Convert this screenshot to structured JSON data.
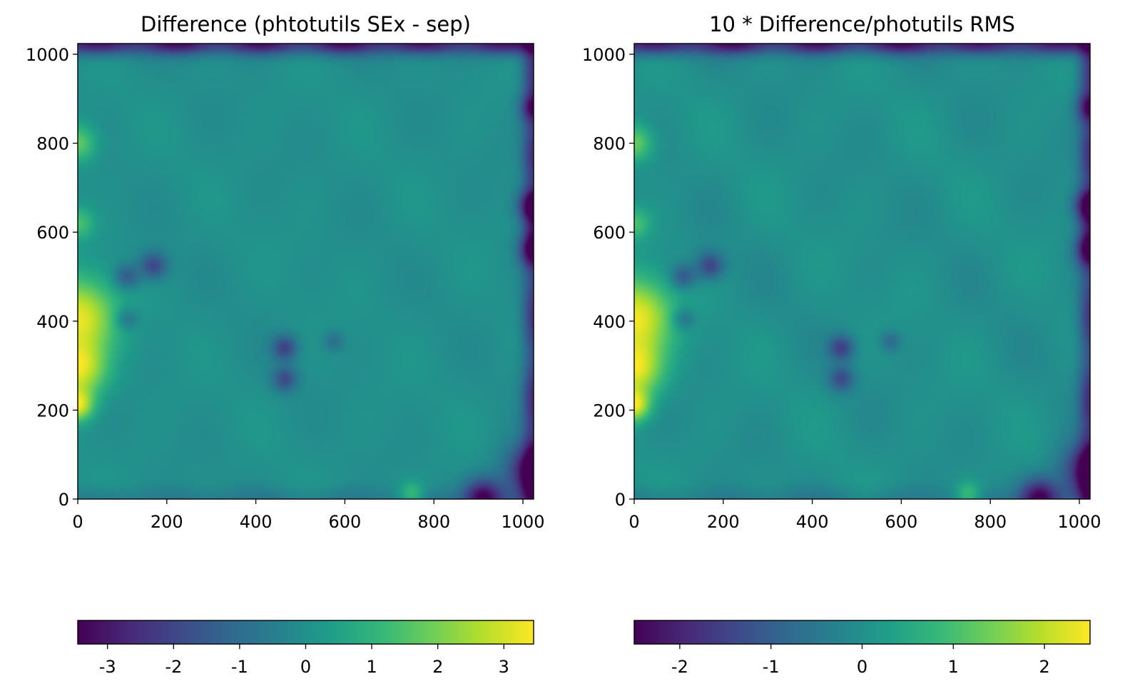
{
  "chart_data": [
    {
      "type": "heatmap",
      "title": "Difference (phtotutils SEx - sep)",
      "xlabel": "",
      "ylabel": "",
      "xlim": [
        0,
        1024
      ],
      "ylim": [
        0,
        1024
      ],
      "xticks": [
        0,
        200,
        400,
        600,
        800,
        1000
      ],
      "yticks": [
        0,
        200,
        400,
        600,
        800,
        1000
      ],
      "grid": false,
      "colormap": "viridis",
      "colorbar": {
        "orientation": "horizontal",
        "placement": "bottom",
        "range": [
          -3.45,
          3.45
        ],
        "ticks": [
          -3,
          -2,
          -1,
          0,
          1,
          2,
          3
        ],
        "ticklabels": [
          "-3",
          "-2",
          "-1",
          "0",
          "1",
          "2",
          "3"
        ]
      },
      "background_value": 0,
      "features": [
        {
          "kind": "edge",
          "side": "top",
          "value": -3.2
        },
        {
          "kind": "edge",
          "side": "right",
          "value": -2.5
        },
        {
          "kind": "edge",
          "side": "bottom",
          "value": -0.6
        },
        {
          "kind": "blob",
          "x": 0,
          "y": 410,
          "value": 3.2,
          "radius": 60
        },
        {
          "kind": "blob",
          "x": 0,
          "y": 290,
          "value": 3.0,
          "radius": 45
        },
        {
          "kind": "blob",
          "x": 0,
          "y": 210,
          "value": 2.8,
          "radius": 25
        },
        {
          "kind": "blob",
          "x": 0,
          "y": 800,
          "value": 1.8,
          "radius": 30
        },
        {
          "kind": "blob",
          "x": 0,
          "y": 620,
          "value": 1.4,
          "radius": 25
        },
        {
          "kind": "blob",
          "x": 170,
          "y": 525,
          "value": -2.0,
          "radius": 22
        },
        {
          "kind": "blob",
          "x": 110,
          "y": 500,
          "value": -1.6,
          "radius": 20
        },
        {
          "kind": "blob",
          "x": 110,
          "y": 405,
          "value": -1.2,
          "radius": 18
        },
        {
          "kind": "blob",
          "x": 465,
          "y": 340,
          "value": -2.0,
          "radius": 20
        },
        {
          "kind": "blob",
          "x": 465,
          "y": 270,
          "value": -1.8,
          "radius": 20
        },
        {
          "kind": "blob",
          "x": 575,
          "y": 355,
          "value": -1.0,
          "radius": 16
        },
        {
          "kind": "blob",
          "x": 1024,
          "y": 660,
          "value": -3.0,
          "radius": 25
        },
        {
          "kind": "blob",
          "x": 1024,
          "y": 560,
          "value": -2.2,
          "radius": 25
        },
        {
          "kind": "blob",
          "x": 1024,
          "y": 880,
          "value": -2.0,
          "radius": 22
        },
        {
          "kind": "blob",
          "x": 1024,
          "y": 60,
          "value": -3.3,
          "radius": 45
        },
        {
          "kind": "blob",
          "x": 910,
          "y": 5,
          "value": -3.0,
          "radius": 30
        },
        {
          "kind": "blob",
          "x": 750,
          "y": 10,
          "value": 1.5,
          "radius": 20
        }
      ]
    },
    {
      "type": "heatmap",
      "title": "10 * Difference/photutils RMS",
      "xlabel": "",
      "ylabel": "",
      "xlim": [
        0,
        1024
      ],
      "ylim": [
        0,
        1024
      ],
      "xticks": [
        0,
        200,
        400,
        600,
        800,
        1000
      ],
      "yticks": [
        0,
        200,
        400,
        600,
        800,
        1000
      ],
      "grid": false,
      "colormap": "viridis",
      "colorbar": {
        "orientation": "horizontal",
        "placement": "bottom",
        "range": [
          -2.5,
          2.5
        ],
        "ticks": [
          -2,
          -1,
          0,
          1,
          2
        ],
        "ticklabels": [
          "-2",
          "-1",
          "0",
          "1",
          "2"
        ]
      },
      "background_value": 0,
      "features": [
        {
          "kind": "edge",
          "side": "top",
          "value": -2.3
        },
        {
          "kind": "edge",
          "side": "right",
          "value": -1.8
        },
        {
          "kind": "edge",
          "side": "bottom",
          "value": -0.4
        },
        {
          "kind": "blob",
          "x": 0,
          "y": 410,
          "value": 2.4,
          "radius": 60
        },
        {
          "kind": "blob",
          "x": 0,
          "y": 290,
          "value": 2.2,
          "radius": 45
        },
        {
          "kind": "blob",
          "x": 0,
          "y": 210,
          "value": 2.1,
          "radius": 25
        },
        {
          "kind": "blob",
          "x": 0,
          "y": 800,
          "value": 1.4,
          "radius": 30
        },
        {
          "kind": "blob",
          "x": 0,
          "y": 620,
          "value": 1.0,
          "radius": 25
        },
        {
          "kind": "blob",
          "x": 170,
          "y": 525,
          "value": -1.5,
          "radius": 22
        },
        {
          "kind": "blob",
          "x": 110,
          "y": 500,
          "value": -1.2,
          "radius": 20
        },
        {
          "kind": "blob",
          "x": 110,
          "y": 405,
          "value": -0.9,
          "radius": 18
        },
        {
          "kind": "blob",
          "x": 465,
          "y": 340,
          "value": -1.5,
          "radius": 20
        },
        {
          "kind": "blob",
          "x": 465,
          "y": 270,
          "value": -1.3,
          "radius": 20
        },
        {
          "kind": "blob",
          "x": 575,
          "y": 355,
          "value": -0.8,
          "radius": 16
        },
        {
          "kind": "blob",
          "x": 1024,
          "y": 660,
          "value": -2.2,
          "radius": 25
        },
        {
          "kind": "blob",
          "x": 1024,
          "y": 560,
          "value": -1.6,
          "radius": 25
        },
        {
          "kind": "blob",
          "x": 1024,
          "y": 880,
          "value": -1.5,
          "radius": 22
        },
        {
          "kind": "blob",
          "x": 1024,
          "y": 60,
          "value": -2.4,
          "radius": 45
        },
        {
          "kind": "blob",
          "x": 910,
          "y": 5,
          "value": -2.2,
          "radius": 30
        },
        {
          "kind": "blob",
          "x": 750,
          "y": 10,
          "value": 1.1,
          "radius": 20
        }
      ]
    }
  ]
}
